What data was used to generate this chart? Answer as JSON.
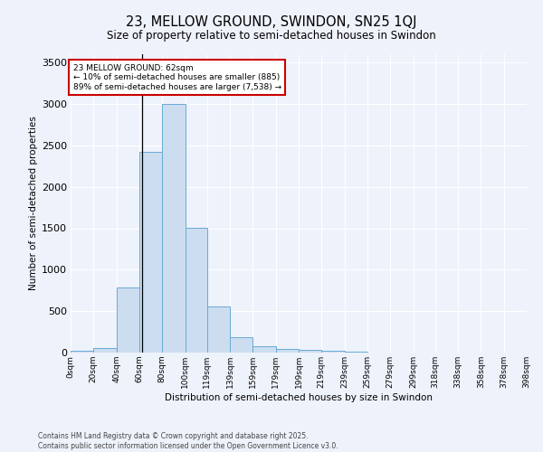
{
  "title": "23, MELLOW GROUND, SWINDON, SN25 1QJ",
  "subtitle": "Size of property relative to semi-detached houses in Swindon",
  "xlabel": "Distribution of semi-detached houses by size in Swindon",
  "ylabel": "Number of semi-detached properties",
  "bar_color": "#ccddf0",
  "bar_edge_color": "#6aaad4",
  "background_color": "#eef2fb",
  "grid_color": "#ffffff",
  "annotation_text": "23 MELLOW GROUND: 62sqm\n← 10% of semi-detached houses are smaller (885)\n89% of semi-detached houses are larger (7,538) →",
  "annotation_box_color": "#ffffff",
  "annotation_border_color": "#cc0000",
  "footer_text": "Contains HM Land Registry data © Crown copyright and database right 2025.\nContains public sector information licensed under the Open Government Licence v3.0.",
  "property_line_x": 62,
  "bin_edges": [
    0,
    20,
    40,
    60,
    80,
    100,
    119,
    139,
    159,
    179,
    199,
    219,
    239,
    259,
    279,
    299,
    318,
    338,
    358,
    378,
    398
  ],
  "bin_labels": [
    "0sqm",
    "20sqm",
    "40sqm",
    "60sqm",
    "80sqm",
    "100sqm",
    "119sqm",
    "139sqm",
    "159sqm",
    "179sqm",
    "199sqm",
    "219sqm",
    "239sqm",
    "259sqm",
    "279sqm",
    "299sqm",
    "318sqm",
    "338sqm",
    "358sqm",
    "378sqm",
    "398sqm"
  ],
  "counts": [
    20,
    50,
    785,
    2420,
    3000,
    1510,
    555,
    185,
    75,
    45,
    30,
    20,
    10,
    5,
    0,
    0,
    0,
    0,
    0,
    0
  ],
  "ylim": [
    0,
    3600
  ],
  "yticks": [
    0,
    500,
    1000,
    1500,
    2000,
    2500,
    3000,
    3500
  ]
}
